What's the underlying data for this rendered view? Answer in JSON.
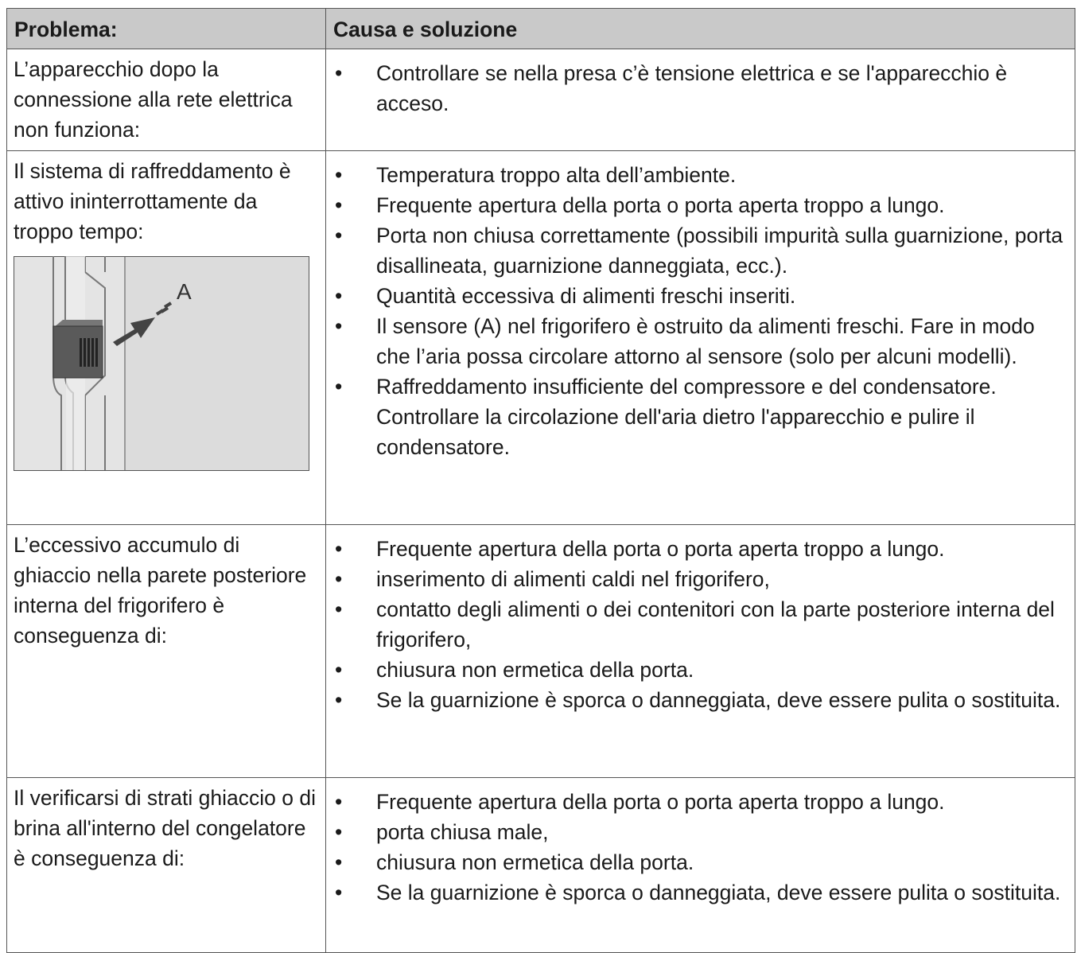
{
  "header": {
    "problem": "Problema:",
    "solution": "Causa e soluzione"
  },
  "rows": [
    {
      "problem": "L’apparecchio dopo la connessione alla rete elettrica non funziona:",
      "solutions": [
        "Controllare se nella presa c’è tensione elettrica e se l'apparecchio è acceso."
      ]
    },
    {
      "problem": "Il sistema di raffreddamento è attivo ininterrottamente da troppo tempo:",
      "figure_label": "A",
      "solutions": [
        "Temperatura troppo alta dell’ambiente.",
        "Frequente apertura della porta o porta aperta troppo a lungo.",
        "Porta non chiusa correttamente (possibili impurità sulla guarnizione, porta disallineata, guarnizione danneggiata, ecc.).",
        "Quantità eccessiva di alimenti freschi inseriti.",
        "Il sensore (A) nel frigorifero è ostruito da alimenti freschi. Fare in modo che l’aria possa circolare attorno al sensore (solo per alcuni modelli).",
        "Raffreddamento insufficiente del compressore e del condensatore. Controllare la circolazione dell'aria dietro l'apparecchio e pulire il condensatore."
      ]
    },
    {
      "problem": "L’eccessivo accumulo di ghiaccio nella parete posteriore interna del frigorifero è conseguenza di:",
      "solutions": [
        "Frequente apertura della porta o porta aperta troppo a lungo.",
        "inserimento di alimenti caldi nel frigorifero,",
        "contatto degli alimenti o dei contenitori con la parte posteriore interna del frigorifero,",
        "chiusura non ermetica della porta.",
        "Se la guarnizione è sporca o danneggiata, deve essere pulita o sostituita."
      ]
    },
    {
      "problem": "Il verificarsi di strati ghiaccio o di brina all'interno del congelatore è conseguenza di:",
      "solutions": [
        "Frequente apertura della porta o porta aperta troppo a lungo.",
        "porta chiusa male,",
        "chiusura non ermetica della porta.",
        "Se la guarnizione è sporca o danneggiata, deve essere pulita o sostituita."
      ]
    }
  ]
}
